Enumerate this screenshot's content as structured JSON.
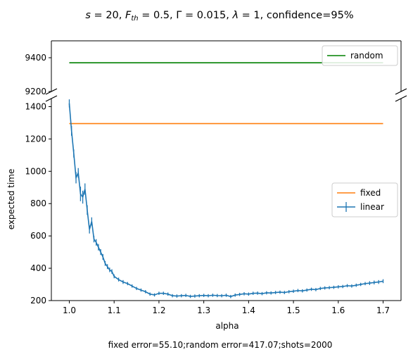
{
  "chart_data": {
    "type": "line",
    "title": "s = 20, F_th = 0.5, Γ = 0.015, λ = 1, confidence=95%",
    "xlabel": "alpha",
    "ylabel": "expected time",
    "footer": "fixed error=55.10;random error=417.07;shots=2000",
    "xlim": [
      0.96,
      1.74
    ],
    "x_ticks": [
      "1.0",
      "1.1",
      "1.2",
      "1.3",
      "1.4",
      "1.5",
      "1.6",
      "1.7"
    ],
    "top_panel": {
      "ylim": [
        9200,
        9500
      ],
      "y_ticks": [
        "9200",
        "9400"
      ]
    },
    "bottom_panel": {
      "ylim": [
        200,
        1450
      ],
      "y_ticks": [
        "200",
        "400",
        "600",
        "800",
        "1000",
        "1200",
        "1400"
      ]
    },
    "axis_break": true,
    "legend_top": {
      "placement": "top-right",
      "entries": [
        "random"
      ]
    },
    "legend_bottom": {
      "placement": "center-right",
      "entries": [
        "fixed",
        "linear"
      ]
    },
    "series": [
      {
        "name": "random",
        "panel": "top",
        "color": "#008000",
        "x": [
          1.0,
          1.7
        ],
        "y": [
          9370,
          9370
        ]
      },
      {
        "name": "fixed",
        "panel": "bottom",
        "color": "#ff7f0e",
        "x": [
          1.0,
          1.7
        ],
        "y": [
          1295,
          1295
        ]
      },
      {
        "name": "linear",
        "panel": "bottom",
        "color": "#1f77b4",
        "error_bars": true,
        "x": [
          1.0,
          1.005,
          1.01,
          1.015,
          1.02,
          1.025,
          1.03,
          1.035,
          1.04,
          1.045,
          1.05,
          1.055,
          1.06,
          1.065,
          1.07,
          1.075,
          1.08,
          1.085,
          1.09,
          1.095,
          1.1,
          1.11,
          1.12,
          1.13,
          1.14,
          1.15,
          1.16,
          1.17,
          1.18,
          1.19,
          1.2,
          1.21,
          1.22,
          1.23,
          1.24,
          1.25,
          1.26,
          1.27,
          1.28,
          1.29,
          1.3,
          1.31,
          1.32,
          1.33,
          1.34,
          1.35,
          1.36,
          1.37,
          1.38,
          1.39,
          1.4,
          1.41,
          1.42,
          1.43,
          1.44,
          1.45,
          1.46,
          1.47,
          1.48,
          1.49,
          1.5,
          1.51,
          1.52,
          1.53,
          1.54,
          1.55,
          1.56,
          1.57,
          1.58,
          1.59,
          1.6,
          1.61,
          1.62,
          1.63,
          1.64,
          1.65,
          1.66,
          1.67,
          1.68,
          1.69,
          1.7
        ],
        "y": [
          1420,
          1250,
          1110,
          960,
          990,
          860,
          840,
          890,
          760,
          640,
          690,
          580,
          560,
          530,
          500,
          470,
          430,
          410,
          390,
          380,
          350,
          330,
          315,
          305,
          290,
          275,
          265,
          255,
          240,
          235,
          245,
          245,
          240,
          230,
          228,
          230,
          232,
          226,
          228,
          230,
          232,
          230,
          233,
          231,
          230,
          233,
          225,
          234,
          238,
          242,
          240,
          245,
          246,
          243,
          248,
          247,
          250,
          252,
          250,
          255,
          258,
          262,
          260,
          265,
          270,
          268,
          275,
          278,
          280,
          282,
          285,
          287,
          292,
          290,
          295,
          300,
          305,
          308,
          312,
          315,
          320
        ],
        "err": [
          25,
          30,
          25,
          35,
          30,
          45,
          40,
          35,
          30,
          25,
          25,
          20,
          20,
          20,
          18,
          18,
          15,
          15,
          14,
          14,
          12,
          12,
          12,
          10,
          10,
          10,
          10,
          10,
          10,
          10,
          10,
          10,
          10,
          10,
          10,
          10,
          10,
          10,
          10,
          10,
          10,
          10,
          10,
          10,
          10,
          10,
          10,
          10,
          10,
          10,
          10,
          10,
          10,
          10,
          10,
          10,
          10,
          10,
          10,
          10,
          10,
          10,
          10,
          10,
          10,
          10,
          10,
          10,
          10,
          10,
          10,
          10,
          10,
          10,
          10,
          10,
          10,
          12,
          12,
          12,
          12
        ]
      }
    ]
  }
}
